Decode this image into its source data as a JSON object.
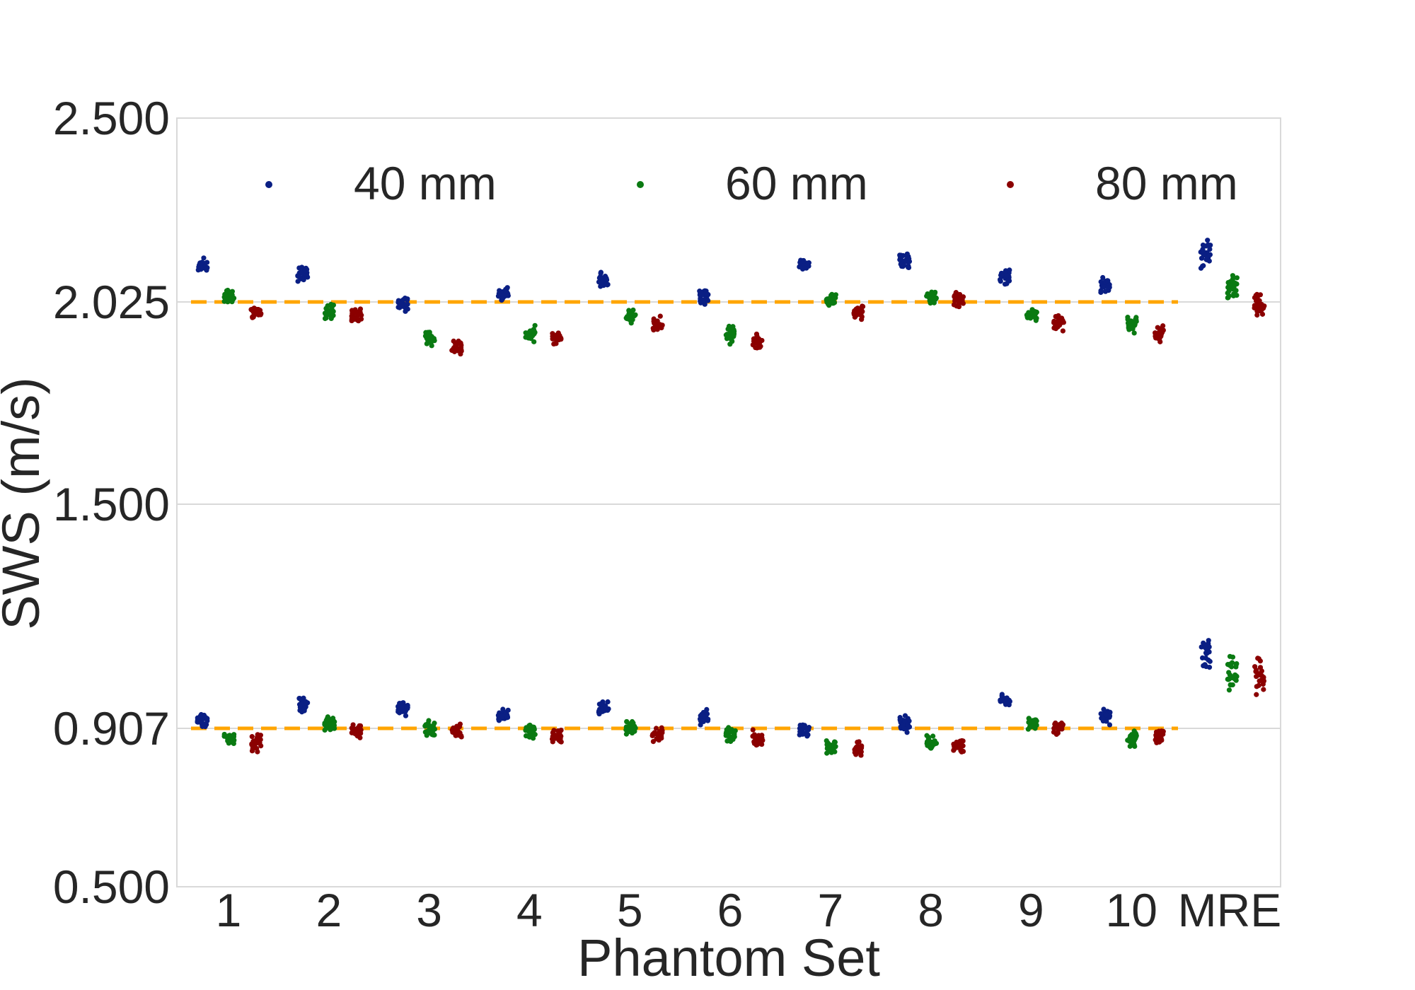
{
  "chart_data": {
    "type": "scatter",
    "title": "",
    "xlabel": "Phantom Set",
    "ylabel": "SWS (m/s)",
    "categories": [
      "1",
      "2",
      "3",
      "4",
      "5",
      "6",
      "7",
      "8",
      "9",
      "10",
      "MRE"
    ],
    "y_ticks": [
      "0.500",
      "0.907",
      "1.500",
      "2.025",
      "2.500"
    ],
    "y_tick_values": [
      0.5,
      0.907,
      1.5,
      2.025,
      2.5
    ],
    "ylim": [
      0.5,
      2.5
    ],
    "y_scale": "piecewise-linear between ticks",
    "grid": "horizontal",
    "legend_position": "top",
    "reference_lines": [
      {
        "value": 2.025,
        "style": "dashed",
        "color": "#FFA500",
        "extent": "sets 1-10"
      },
      {
        "value": 0.907,
        "style": "dashed",
        "color": "#FFA500",
        "extent": "sets 1-10"
      }
    ],
    "series": [
      {
        "name": "40 mm",
        "color": "#0A1F84",
        "high_group_values": [
          2.12,
          2.1,
          2.02,
          2.05,
          2.08,
          2.04,
          2.12,
          2.13,
          2.09,
          2.07,
          2.15
        ],
        "low_group_values": [
          0.93,
          0.97,
          0.96,
          0.94,
          0.96,
          0.94,
          0.9,
          0.92,
          0.98,
          0.94,
          1.11
        ]
      },
      {
        "name": "60 mm",
        "color": "#0A7A12",
        "high_group_values": [
          2.04,
          2.0,
          1.93,
          1.94,
          1.99,
          1.94,
          2.03,
          2.04,
          1.99,
          1.97,
          2.06
        ],
        "low_group_values": [
          0.88,
          0.92,
          0.91,
          0.9,
          0.91,
          0.89,
          0.86,
          0.87,
          0.92,
          0.88,
          1.05
        ]
      },
      {
        "name": "80 mm",
        "color": "#8B0000",
        "high_group_values": [
          2.0,
          1.99,
          1.91,
          1.93,
          1.97,
          1.92,
          2.0,
          2.03,
          1.97,
          1.94,
          2.02
        ],
        "low_group_values": [
          0.87,
          0.9,
          0.9,
          0.89,
          0.89,
          0.88,
          0.85,
          0.86,
          0.91,
          0.89,
          1.04
        ]
      }
    ]
  }
}
